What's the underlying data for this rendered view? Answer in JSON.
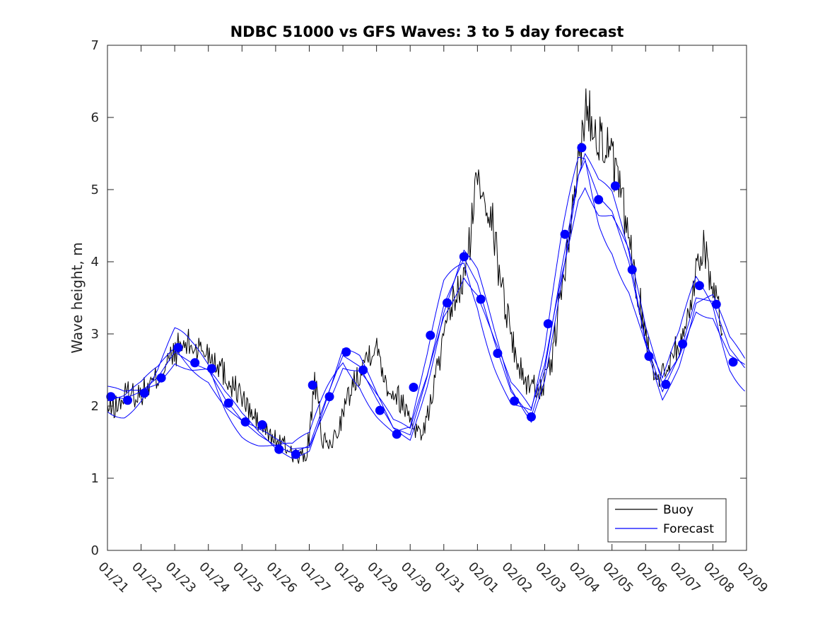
{
  "chart_data": {
    "type": "line",
    "title": "NDBC 51000 vs GFS Waves: 3 to 5 day forecast",
    "xlabel": "",
    "ylabel": "Wave height, m",
    "ylim": [
      0,
      7
    ],
    "xlim": [
      0,
      19
    ],
    "yticks": [
      0,
      1,
      2,
      3,
      4,
      5,
      6,
      7
    ],
    "xtick_labels": [
      "01/21",
      "01/22",
      "01/23",
      "01/24",
      "01/25",
      "01/26",
      "01/27",
      "01/28",
      "01/29",
      "01/30",
      "01/31",
      "02/01",
      "02/02",
      "02/03",
      "02/04",
      "02/05",
      "02/06",
      "02/07",
      "02/08",
      "02/09"
    ],
    "legend": {
      "position": "bottom-right",
      "entries": [
        "Buoy",
        "Forecast"
      ]
    },
    "colors": {
      "buoy": "#000000",
      "forecast": "#0000ff"
    },
    "series": [
      {
        "name": "Buoy",
        "style": "line",
        "anchors": [
          [
            0.0,
            1.95
          ],
          [
            0.3,
            2.0
          ],
          [
            0.6,
            2.2
          ],
          [
            0.9,
            2.15
          ],
          [
            1.2,
            2.25
          ],
          [
            1.5,
            2.4
          ],
          [
            1.8,
            2.6
          ],
          [
            2.1,
            2.8
          ],
          [
            2.4,
            2.85
          ],
          [
            2.7,
            2.8
          ],
          [
            3.0,
            2.75
          ],
          [
            3.3,
            2.6
          ],
          [
            3.6,
            2.35
          ],
          [
            3.9,
            2.2
          ],
          [
            4.2,
            1.95
          ],
          [
            4.5,
            1.75
          ],
          [
            4.8,
            1.6
          ],
          [
            5.1,
            1.5
          ],
          [
            5.4,
            1.4
          ],
          [
            5.7,
            1.28
          ],
          [
            5.9,
            1.3
          ],
          [
            6.0,
            1.6
          ],
          [
            6.15,
            2.3
          ],
          [
            6.25,
            2.1
          ],
          [
            6.4,
            1.5
          ],
          [
            6.6,
            1.45
          ],
          [
            6.8,
            1.6
          ],
          [
            7.0,
            1.9
          ],
          [
            7.3,
            2.3
          ],
          [
            7.6,
            2.6
          ],
          [
            7.9,
            2.85
          ],
          [
            8.1,
            2.7
          ],
          [
            8.3,
            2.3
          ],
          [
            8.6,
            2.15
          ],
          [
            8.9,
            1.95
          ],
          [
            9.1,
            1.75
          ],
          [
            9.3,
            1.6
          ],
          [
            9.5,
            1.8
          ],
          [
            9.7,
            2.3
          ],
          [
            9.9,
            2.7
          ],
          [
            10.1,
            3.1
          ],
          [
            10.3,
            3.5
          ],
          [
            10.5,
            3.6
          ],
          [
            10.7,
            4.0
          ],
          [
            10.85,
            4.6
          ],
          [
            11.0,
            5.2
          ],
          [
            11.2,
            5.0
          ],
          [
            11.4,
            4.7
          ],
          [
            11.6,
            4.0
          ],
          [
            11.8,
            3.5
          ],
          [
            12.0,
            3.0
          ],
          [
            12.2,
            2.6
          ],
          [
            12.4,
            2.35
          ],
          [
            12.6,
            2.3
          ],
          [
            12.8,
            2.25
          ],
          [
            13.0,
            2.3
          ],
          [
            13.2,
            2.6
          ],
          [
            13.4,
            3.3
          ],
          [
            13.6,
            3.9
          ],
          [
            13.8,
            4.5
          ],
          [
            14.0,
            5.4
          ],
          [
            14.2,
            6.1
          ],
          [
            14.4,
            6.0
          ],
          [
            14.6,
            5.8
          ],
          [
            14.8,
            5.6
          ],
          [
            15.0,
            5.4
          ],
          [
            15.2,
            5.0
          ],
          [
            15.4,
            4.6
          ],
          [
            15.6,
            4.0
          ],
          [
            15.8,
            3.5
          ],
          [
            16.0,
            3.0
          ],
          [
            16.2,
            2.6
          ],
          [
            16.4,
            2.35
          ],
          [
            16.6,
            2.5
          ],
          [
            16.8,
            2.8
          ],
          [
            17.0,
            2.8
          ],
          [
            17.2,
            3.1
          ],
          [
            17.4,
            3.6
          ],
          [
            17.6,
            4.1
          ],
          [
            17.75,
            4.3
          ],
          [
            17.9,
            3.8
          ],
          [
            18.1,
            3.4
          ],
          [
            18.3,
            3.05
          ]
        ]
      },
      {
        "name": "Forecast",
        "style": "line",
        "anchors": [
          [
            0.0,
            2.15
          ],
          [
            0.5,
            2.1
          ],
          [
            1.0,
            2.2
          ],
          [
            1.5,
            2.4
          ],
          [
            2.0,
            2.75
          ],
          [
            2.5,
            2.6
          ],
          [
            3.0,
            2.5
          ],
          [
            3.5,
            2.1
          ],
          [
            4.0,
            1.8
          ],
          [
            4.5,
            1.6
          ],
          [
            5.0,
            1.45
          ],
          [
            5.5,
            1.35
          ],
          [
            6.0,
            1.45
          ],
          [
            6.5,
            2.1
          ],
          [
            7.0,
            2.7
          ],
          [
            7.5,
            2.55
          ],
          [
            8.0,
            2.1
          ],
          [
            8.5,
            1.7
          ],
          [
            9.0,
            1.6
          ],
          [
            9.5,
            2.4
          ],
          [
            10.0,
            3.4
          ],
          [
            10.6,
            4.05
          ],
          [
            11.0,
            3.7
          ],
          [
            11.5,
            2.9
          ],
          [
            12.0,
            2.2
          ],
          [
            12.6,
            1.85
          ],
          [
            13.0,
            2.5
          ],
          [
            13.5,
            3.9
          ],
          [
            14.0,
            5.2
          ],
          [
            14.2,
            5.4
          ],
          [
            14.6,
            4.9
          ],
          [
            15.0,
            4.7
          ],
          [
            15.5,
            4.0
          ],
          [
            16.0,
            2.9
          ],
          [
            16.5,
            2.2
          ],
          [
            17.0,
            2.7
          ],
          [
            17.5,
            3.5
          ],
          [
            18.0,
            3.45
          ],
          [
            18.5,
            2.8
          ],
          [
            19.0,
            2.5
          ]
        ]
      },
      {
        "name": "Forecast markers",
        "style": "markers",
        "x": [
          0.1,
          0.6,
          1.1,
          1.6,
          2.1,
          2.6,
          3.1,
          3.6,
          4.1,
          4.6,
          5.1,
          5.6,
          6.1,
          6.6,
          7.1,
          7.6,
          8.1,
          8.6,
          9.1,
          9.6,
          10.1,
          10.6,
          11.1,
          11.6,
          12.1,
          12.6,
          13.1,
          13.6,
          14.1,
          14.6,
          15.1,
          15.6,
          16.1,
          16.6,
          17.1,
          17.6,
          18.1,
          18.6
        ],
        "values": [
          2.13,
          2.08,
          2.18,
          2.39,
          2.81,
          2.6,
          2.52,
          2.04,
          1.78,
          1.74,
          1.4,
          1.33,
          2.29,
          2.13,
          2.75,
          2.5,
          1.94,
          1.61,
          2.26,
          2.98,
          3.43,
          4.07,
          3.48,
          2.73,
          2.07,
          1.85,
          3.14,
          4.38,
          5.58,
          4.86,
          5.05,
          3.89,
          2.69,
          2.3,
          2.86,
          3.67,
          3.41,
          2.61
        ]
      }
    ]
  }
}
